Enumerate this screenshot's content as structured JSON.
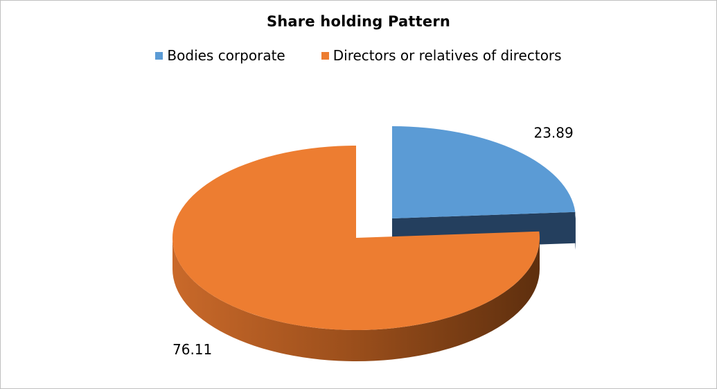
{
  "chart_data": {
    "type": "pie",
    "title": "Share holding  Pattern",
    "categories": [
      "Bodies corporate",
      "Directors or relatives of directors"
    ],
    "values": [
      23.89,
      76.11
    ],
    "data_labels": [
      "23.89",
      "76.11"
    ],
    "colors": [
      "#5b9bd5",
      "#ed7d31"
    ],
    "side_colors": [
      "#243f5e",
      "#7a3e12"
    ],
    "legend_position": "top",
    "style": "3d-exploded"
  }
}
